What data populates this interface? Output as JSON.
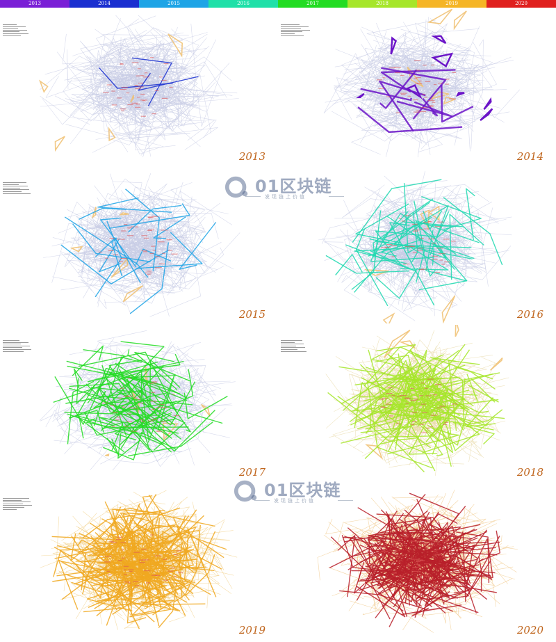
{
  "legend": [
    {
      "year": "2013",
      "color": "#7a1fd6"
    },
    {
      "year": "2014",
      "color": "#1a2fd0"
    },
    {
      "year": "2015",
      "color": "#1ea4e6"
    },
    {
      "year": "2016",
      "color": "#1fe0a8"
    },
    {
      "year": "2017",
      "color": "#22dc22"
    },
    {
      "year": "2018",
      "color": "#a6e62a"
    },
    {
      "year": "2019",
      "color": "#f5b526"
    },
    {
      "year": "2020",
      "color": "#e0201e"
    }
  ],
  "panels": [
    {
      "year": "2013",
      "highlight": "#1a2fd0",
      "base": "#c9cde6",
      "density": 0
    },
    {
      "year": "2014",
      "highlight": "#6b14c8",
      "base": "#c9cde6",
      "density": 0
    },
    {
      "year": "2015",
      "highlight": "#1ea4e6",
      "base": "#c9cde6",
      "density": 1
    },
    {
      "year": "2016",
      "highlight": "#1fd8b0",
      "base": "#c9cde6",
      "density": 2
    },
    {
      "year": "2017",
      "highlight": "#22dc22",
      "base": "#c9cde6",
      "density": 3
    },
    {
      "year": "2018",
      "highlight": "#a6e62a",
      "base": "#e8d9a8",
      "density": 4
    },
    {
      "year": "2019",
      "highlight": "#f0a820",
      "base": "#f2d08a",
      "density": 5
    },
    {
      "year": "2020",
      "highlight": "#b8202a",
      "base": "#f0c888",
      "density": 6
    }
  ],
  "watermark": {
    "title": "01区块链",
    "subtitle": "发现链上价值"
  }
}
